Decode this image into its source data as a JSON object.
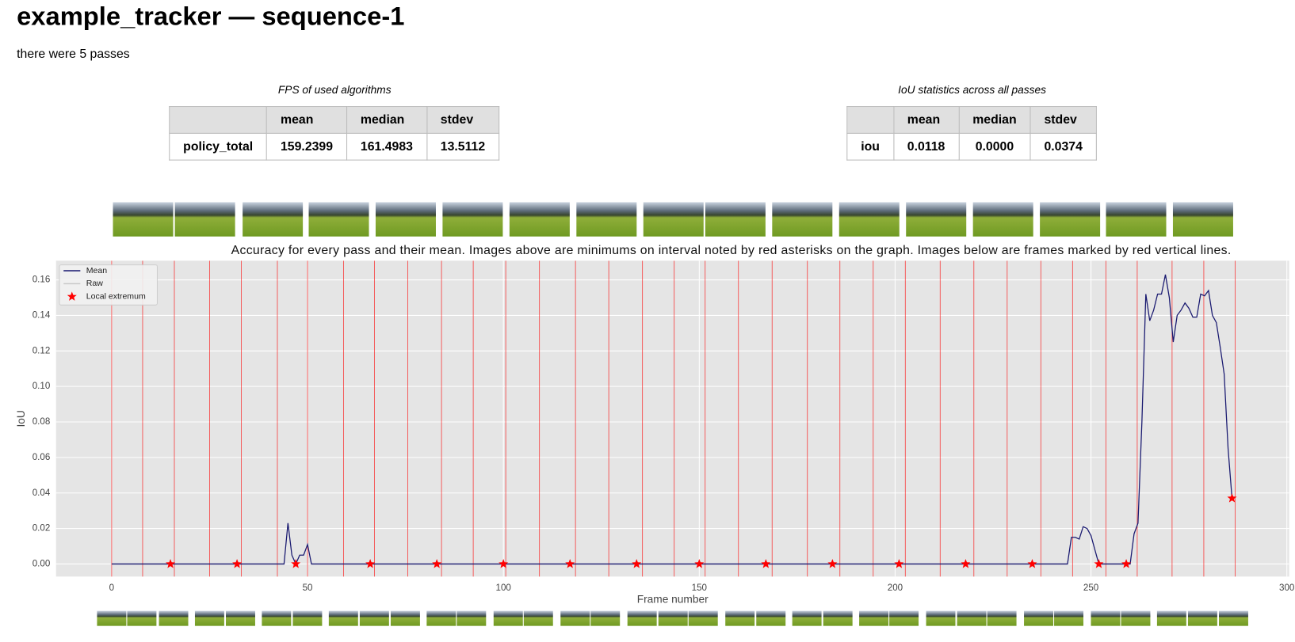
{
  "header": {
    "title": "example_tracker — sequence-1",
    "subtitle": "there were 5 passes"
  },
  "fps_table": {
    "caption": "FPS of used algorithms",
    "columns": [
      "mean",
      "median",
      "stdev"
    ],
    "rows": [
      [
        "policy_total",
        "159.2399",
        "161.4983",
        "13.5112"
      ]
    ]
  },
  "iou_table": {
    "caption": "IoU statistics across all passes",
    "columns": [
      "mean",
      "median",
      "stdev"
    ],
    "rows": [
      [
        "iou",
        "0.0118",
        "0.0000",
        "0.0374"
      ]
    ]
  },
  "chart_data": {
    "type": "line",
    "title": "Accuracy for every pass and their mean. Images above are minimums on interval noted by red asterisks on the graph. Images below are frames marked by red vertical lines.",
    "xlabel": "Frame number",
    "ylabel": "IoU",
    "xlim": [
      -14.2,
      300.6
    ],
    "xticks": [
      0,
      50,
      100,
      150,
      200,
      250,
      300
    ],
    "ylim": [
      -0.0071,
      0.1708
    ],
    "yticks": [
      {
        "value": 0,
        "label": "0.00"
      },
      {
        "value": 0.02,
        "label": "0.02"
      },
      {
        "value": 0.04,
        "label": "0.04"
      },
      {
        "value": 0.06,
        "label": "0.06"
      },
      {
        "value": 0.08,
        "label": "0.08"
      },
      {
        "value": 0.1,
        "label": "0.10"
      },
      {
        "value": 0.12,
        "label": "0.12"
      },
      {
        "value": 0.14,
        "label": "0.14"
      },
      {
        "value": 0.16,
        "label": "0.16"
      }
    ],
    "grid": true,
    "legend": "upper left",
    "series": [
      {
        "name": "Mean",
        "color": "#191970",
        "x": [
          0,
          44,
          45,
          46,
          47,
          48,
          49,
          50,
          51,
          244,
          245,
          246,
          247,
          248,
          249,
          250,
          251,
          252,
          260,
          261,
          262,
          263,
          264,
          265,
          266,
          267,
          268,
          269,
          270,
          271,
          272,
          273,
          274,
          275,
          276,
          277,
          278,
          279,
          280,
          281,
          282,
          283,
          284,
          285,
          286
        ],
        "values": [
          0,
          0,
          0.023,
          0.005,
          0,
          0.005,
          0.005,
          0.011,
          0,
          0,
          0.015,
          0.015,
          0.014,
          0.021,
          0.02,
          0.016,
          0.008,
          0,
          0,
          0.017,
          0.023,
          0.08,
          0.152,
          0.137,
          0.143,
          0.152,
          0.152,
          0.163,
          0.15,
          0.125,
          0.14,
          0.143,
          0.147,
          0.144,
          0.139,
          0.139,
          0.152,
          0.151,
          0.154,
          0.14,
          0.136,
          0.122,
          0.107,
          0.065,
          0.037
        ]
      },
      {
        "name": "Raw",
        "color": "#c8c8c8",
        "x": [],
        "values": []
      }
    ],
    "markers": {
      "name": "Local extremum",
      "color": "red",
      "x": [
        15,
        32,
        47,
        66,
        83,
        100,
        117,
        134,
        150,
        167,
        184,
        201,
        218,
        235,
        252,
        259,
        286
      ],
      "values": [
        0,
        0,
        0,
        0,
        0,
        0,
        0,
        0,
        0,
        0,
        0,
        0,
        0,
        0,
        0,
        0,
        0.037
      ]
    },
    "marked_frames": {
      "color": "red",
      "x": [
        0,
        7.9,
        16,
        25,
        33.1,
        42.3,
        50,
        59.2,
        67.1,
        75.6,
        84.2,
        92.3,
        100.6,
        109.2,
        118.4,
        126.9,
        135.5,
        143.6,
        151.5,
        160,
        168.6,
        177.6,
        185.9,
        194.4,
        202.6,
        211.5,
        220.1,
        228.6,
        237.2,
        245.3,
        253.8,
        261.8,
        270.7,
        278.8,
        286.8
      ]
    }
  }
}
